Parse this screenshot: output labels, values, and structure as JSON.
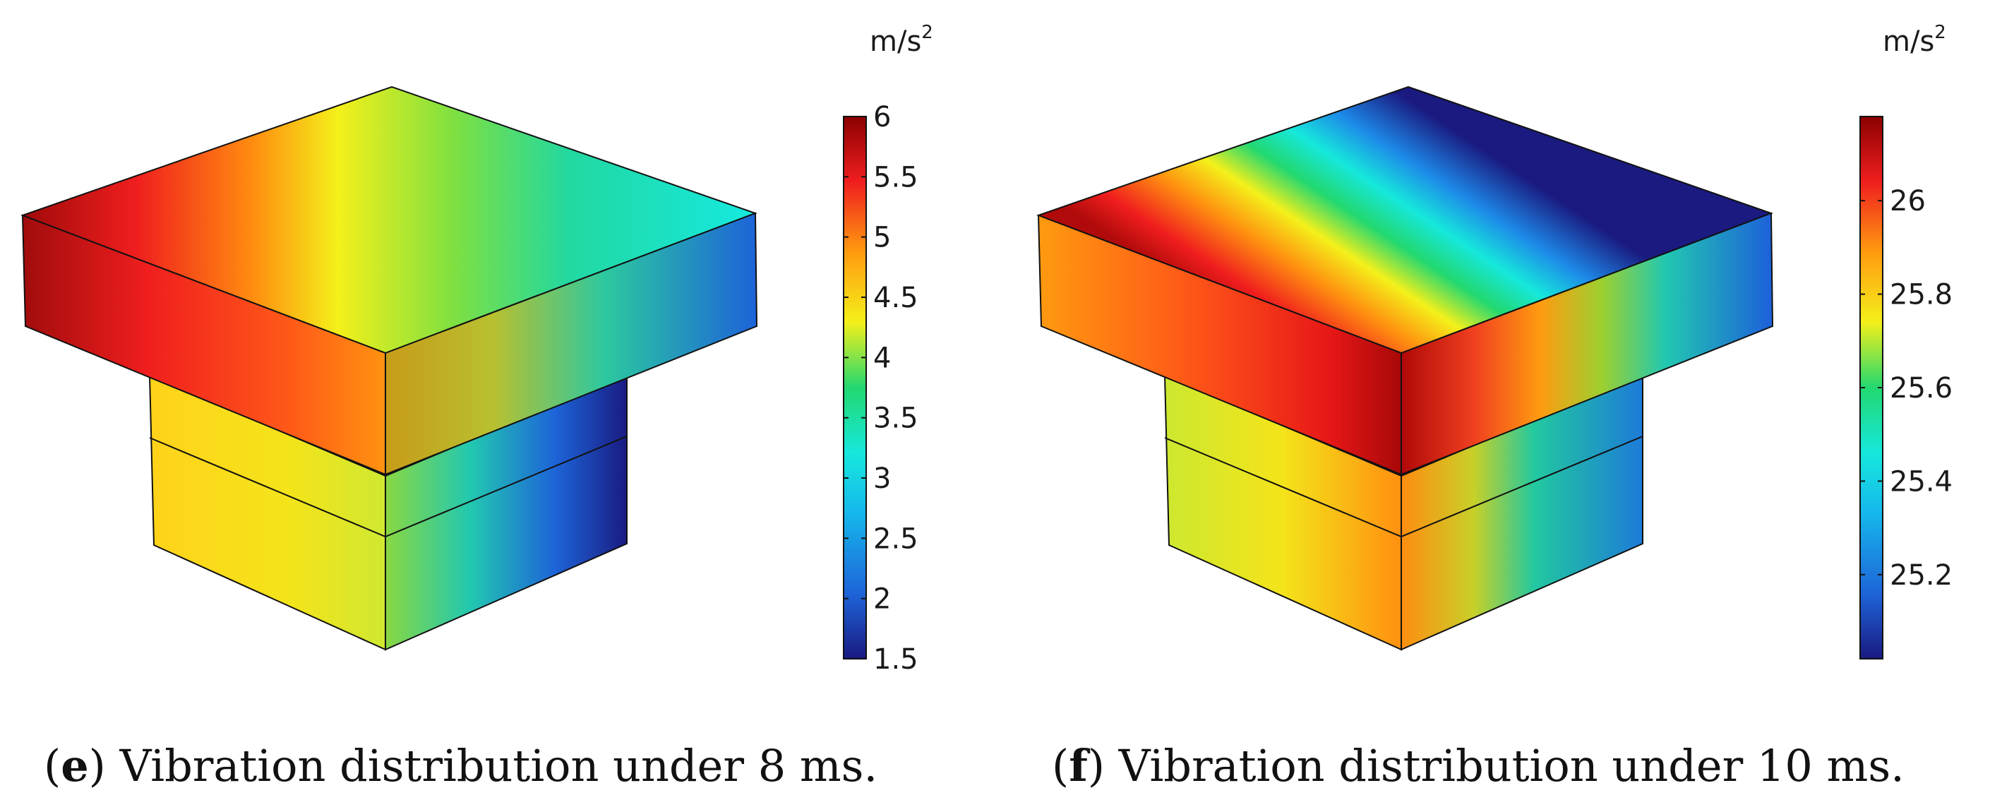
{
  "panels": [
    {
      "label": "e",
      "caption": "Vibration distribution under 8 ms.",
      "colorbar": {
        "unit": "m/s",
        "unit_exponent": "2",
        "min": 1.5,
        "max": 6,
        "ticks": [
          "6",
          "5.5",
          "5",
          "4.5",
          "4",
          "3.5",
          "3",
          "2.5",
          "2",
          "1.5"
        ]
      }
    },
    {
      "label": "f",
      "caption": "Vibration distribution under 10 ms.",
      "colorbar": {
        "unit": "m/s",
        "unit_exponent": "2",
        "min": 25.02,
        "max": 26.18,
        "ticks": [
          "26",
          "25.8",
          "25.6",
          "25.4",
          "25.2"
        ]
      }
    }
  ],
  "colormap": "rainbow",
  "colors": {
    "dark_red": "#8b0000",
    "red": "#f01e1e",
    "orange": "#ff9b10",
    "yellow": "#f4f01a",
    "green": "#22d870",
    "cyan": "#16e8dc",
    "blue": "#1d64d8",
    "dark_blue": "#1a1a80"
  }
}
